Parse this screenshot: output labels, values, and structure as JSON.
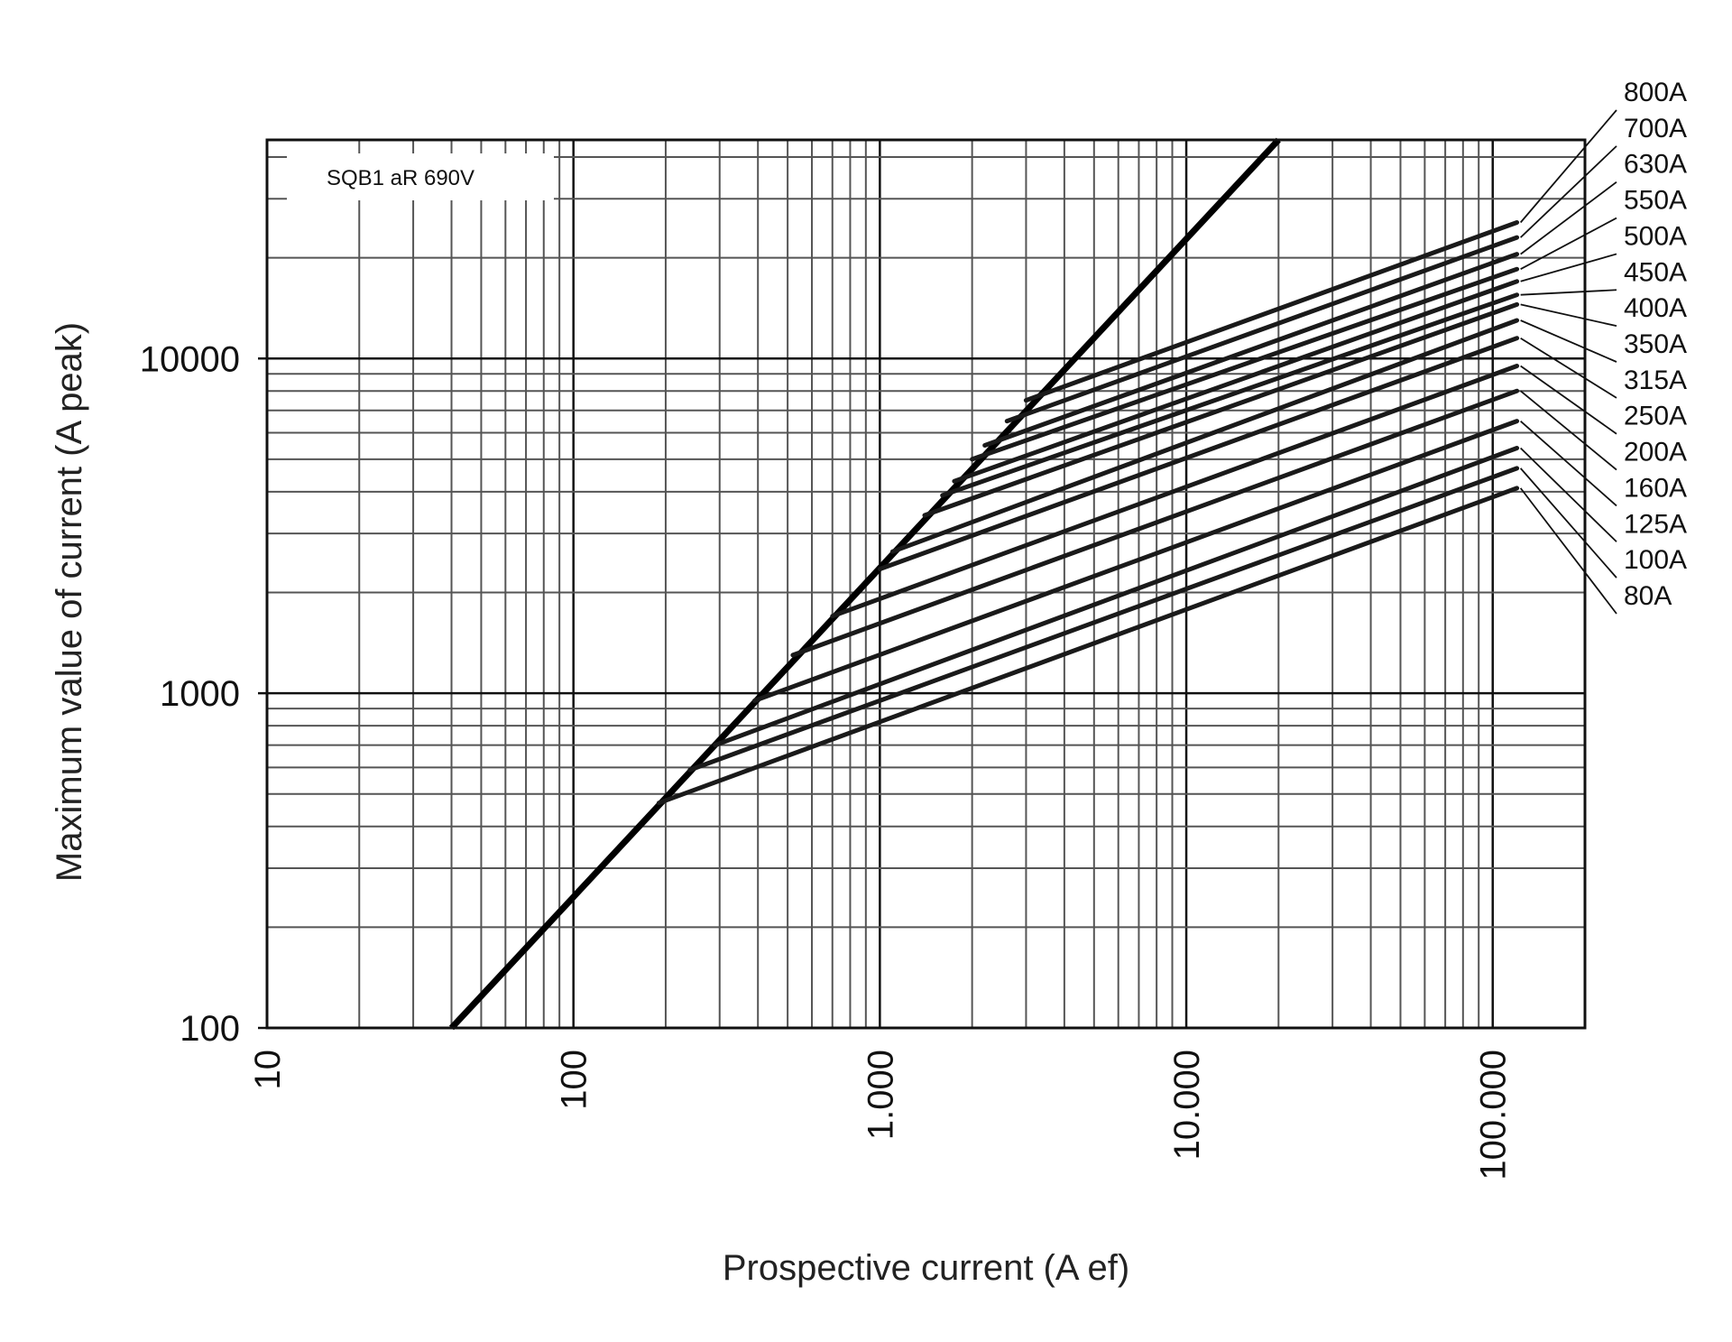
{
  "chart_data": {
    "type": "line",
    "xscale": "log",
    "yscale": "log",
    "xlim": [
      10,
      200000
    ],
    "ylim": [
      100,
      45000
    ],
    "grid": true,
    "xlabel": "Prospective current (A ef)",
    "ylabel": "Maximum value of current (A peak)",
    "annotation": "SQB1 aR 690V",
    "x_ticks": [
      {
        "value": 10,
        "label": "10"
      },
      {
        "value": 100,
        "label": "100"
      },
      {
        "value": 1000,
        "label": "1.000"
      },
      {
        "value": 10000,
        "label": "10.000"
      },
      {
        "value": 100000,
        "label": "100.000"
      }
    ],
    "y_ticks": [
      {
        "value": 100,
        "label": "100"
      },
      {
        "value": 1000,
        "label": "1000"
      },
      {
        "value": 10000,
        "label": "10000"
      }
    ],
    "envelope": {
      "x": [
        40,
        20000
      ],
      "y": [
        100,
        45000
      ]
    },
    "series": [
      {
        "name": "800A",
        "x": [
          3000,
          120000
        ],
        "y": [
          7500,
          25500
        ]
      },
      {
        "name": "700A",
        "x": [
          2600,
          120000
        ],
        "y": [
          6500,
          23000
        ]
      },
      {
        "name": "630A",
        "x": [
          2200,
          120000
        ],
        "y": [
          5500,
          20500
        ]
      },
      {
        "name": "550A",
        "x": [
          2000,
          120000
        ],
        "y": [
          5000,
          18500
        ]
      },
      {
        "name": "500A",
        "x": [
          1750,
          120000
        ],
        "y": [
          4300,
          17000
        ]
      },
      {
        "name": "450A",
        "x": [
          1600,
          120000
        ],
        "y": [
          3900,
          15500
        ]
      },
      {
        "name": "400A",
        "x": [
          1400,
          120000
        ],
        "y": [
          3400,
          14500
        ]
      },
      {
        "name": "350A",
        "x": [
          1100,
          120000
        ],
        "y": [
          2650,
          13000
        ]
      },
      {
        "name": "315A",
        "x": [
          1000,
          120000
        ],
        "y": [
          2350,
          11500
        ]
      },
      {
        "name": "250A",
        "x": [
          700,
          120000
        ],
        "y": [
          1700,
          9500
        ]
      },
      {
        "name": "200A",
        "x": [
          520,
          120000
        ],
        "y": [
          1300,
          8000
        ]
      },
      {
        "name": "160A",
        "x": [
          390,
          120000
        ],
        "y": [
          950,
          6500
        ]
      },
      {
        "name": "125A",
        "x": [
          290,
          120000
        ],
        "y": [
          700,
          5400
        ]
      },
      {
        "name": "100A",
        "x": [
          240,
          120000
        ],
        "y": [
          590,
          4700
        ]
      },
      {
        "name": "80A",
        "x": [
          190,
          120000
        ],
        "y": [
          470,
          4100
        ]
      }
    ]
  }
}
